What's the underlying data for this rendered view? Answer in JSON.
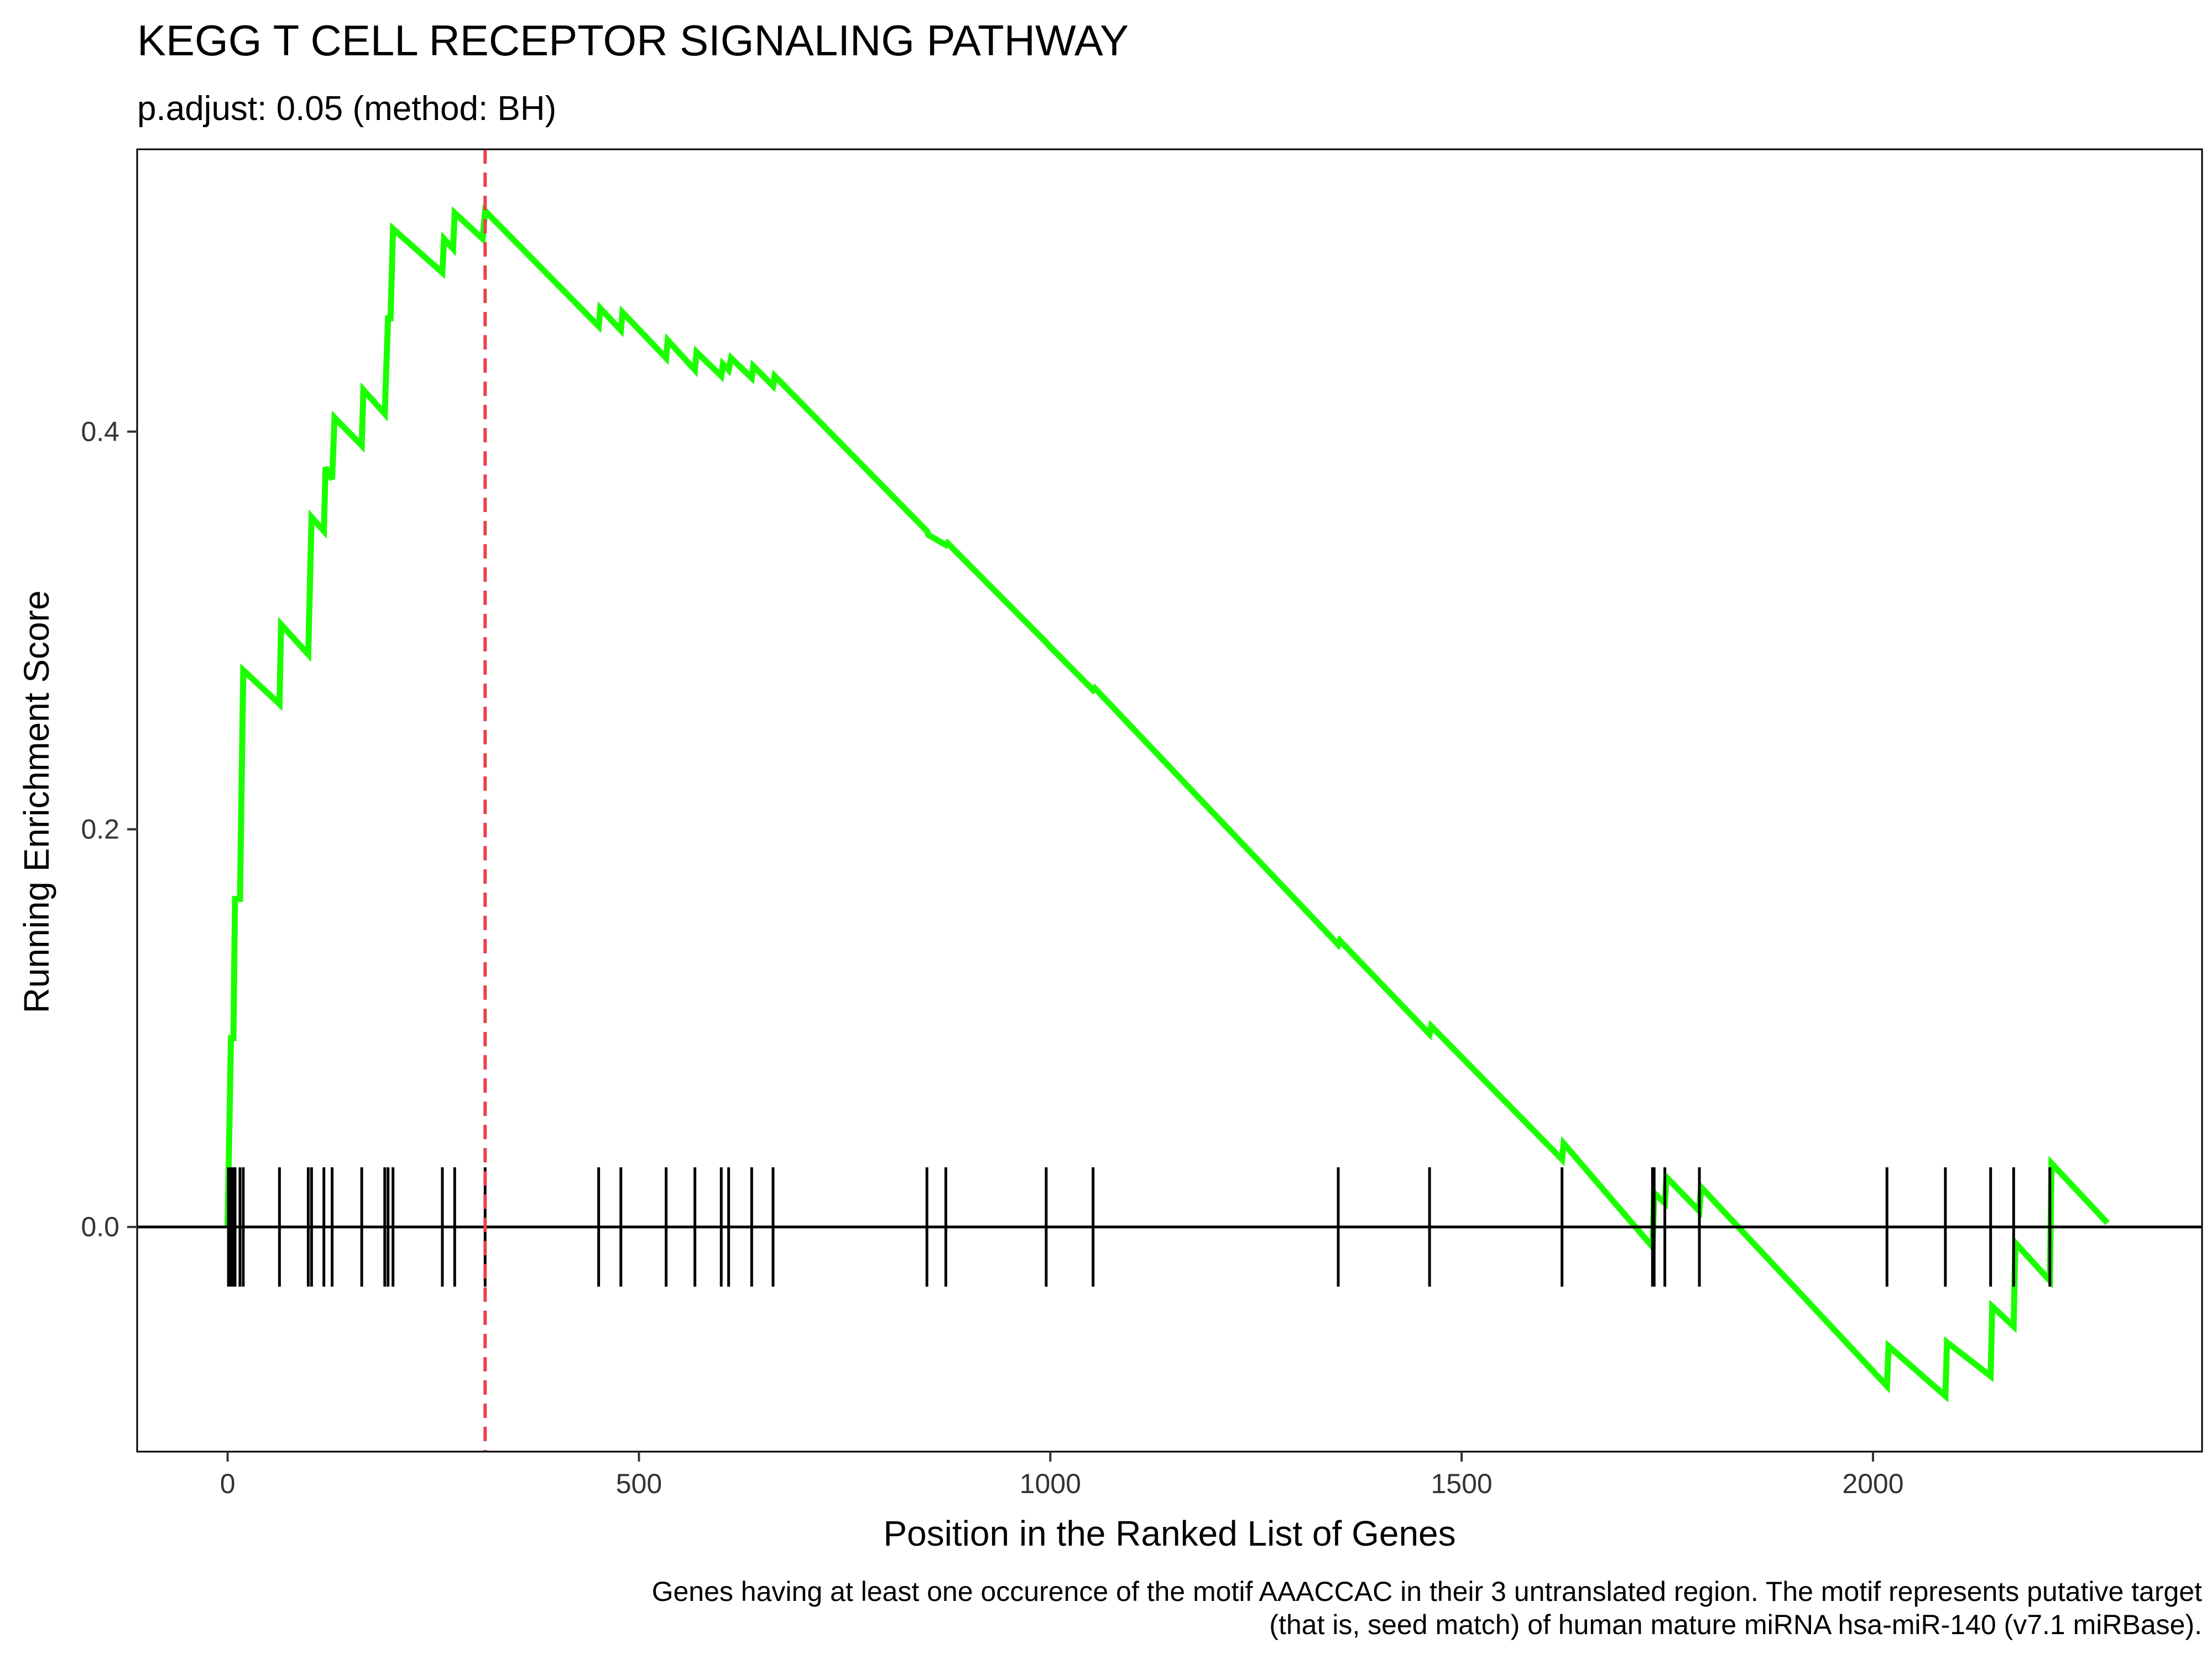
{
  "chart_data": {
    "type": "line",
    "title": "KEGG T CELL RECEPTOR SIGNALING PATHWAY",
    "subtitle": "p.adjust: 0.05 (method: BH)",
    "xlabel": "Position in the Ranked List of Genes",
    "ylabel": "Running Enrichment Score",
    "caption": [
      "Genes having at least one occurence of the motif AAACCAC in their 3 untranslated region. The motif represents putative target",
      "(that is, seed match) of human mature miRNA hsa-miR-140 (v7.1 miRBase)."
    ],
    "xlim": [
      -110,
      2400
    ],
    "ylim": [
      -0.113,
      0.542
    ],
    "x_ticks": [
      0,
      500,
      1000,
      1500,
      2000
    ],
    "y_ticks": [
      0.0,
      0.2,
      0.4
    ],
    "y_tick_labels": [
      "0.0",
      "0.2",
      "0.4"
    ],
    "grid": false,
    "line_color": "#1CFF00",
    "peak_line_color": "#E8434F",
    "peak_position": 313,
    "series": [
      {
        "values": [
          [
            0,
            0.0
          ],
          [
            4,
            0.095
          ],
          [
            7,
            0.095
          ],
          [
            9,
            0.165
          ],
          [
            15,
            0.165
          ],
          [
            17,
            0.222
          ],
          [
            19,
            0.28
          ],
          [
            63,
            0.263
          ],
          [
            65,
            0.303
          ],
          [
            98,
            0.288
          ],
          [
            100,
            0.323
          ],
          [
            102,
            0.357
          ],
          [
            117,
            0.35
          ],
          [
            119,
            0.382
          ],
          [
            127,
            0.376
          ],
          [
            130,
            0.407
          ],
          [
            163,
            0.393
          ],
          [
            165,
            0.421
          ],
          [
            191,
            0.409
          ],
          [
            193,
            0.434
          ],
          [
            195,
            0.457
          ],
          [
            198,
            0.457
          ],
          [
            201,
            0.502
          ],
          [
            261,
            0.48
          ],
          [
            263,
            0.497
          ],
          [
            274,
            0.492
          ],
          [
            276,
            0.51
          ],
          [
            310,
            0.497
          ],
          [
            313,
            0.511
          ],
          [
            451,
            0.453
          ],
          [
            453,
            0.462
          ],
          [
            478,
            0.451
          ],
          [
            480,
            0.46
          ],
          [
            533,
            0.437
          ],
          [
            535,
            0.446
          ],
          [
            568,
            0.431
          ],
          [
            570,
            0.44
          ],
          [
            600,
            0.428
          ],
          [
            602,
            0.434
          ],
          [
            609,
            0.431
          ],
          [
            612,
            0.437
          ],
          [
            637,
            0.427
          ],
          [
            639,
            0.433
          ],
          [
            663,
            0.423
          ],
          [
            665,
            0.428
          ],
          [
            850,
            0.35
          ],
          [
            852,
            0.348
          ],
          [
            873,
            0.343
          ],
          [
            875,
            0.344
          ],
          [
            995,
            0.294
          ],
          [
            997,
            0.293
          ],
          [
            1052,
            0.27
          ],
          [
            1054,
            0.271
          ],
          [
            1350,
            0.142
          ],
          [
            1352,
            0.144
          ],
          [
            1461,
            0.097
          ],
          [
            1463,
            0.101
          ],
          [
            1622,
            0.034
          ],
          [
            1624,
            0.042
          ],
          [
            1732,
            -0.01
          ],
          [
            1734,
            0.017
          ],
          [
            1747,
            0.012
          ],
          [
            1749,
            0.025
          ],
          [
            1789,
            0.008
          ],
          [
            1791,
            0.02
          ],
          [
            2017,
            -0.08
          ],
          [
            2019,
            -0.06
          ],
          [
            2088,
            -0.085
          ],
          [
            2090,
            -0.058
          ],
          [
            2143,
            -0.075
          ],
          [
            2145,
            -0.04
          ],
          [
            2171,
            -0.05
          ],
          [
            2173,
            -0.008
          ],
          [
            2215,
            -0.027
          ],
          [
            2217,
            0.032
          ],
          [
            2285,
            0.002
          ]
        ]
      }
    ],
    "gene_hits": [
      1,
      4,
      7,
      9,
      15,
      19,
      63,
      98,
      102,
      117,
      127,
      163,
      191,
      195,
      201,
      261,
      276,
      313,
      451,
      478,
      533,
      568,
      600,
      609,
      637,
      663,
      850,
      873,
      995,
      1052,
      1350,
      1461,
      1622,
      1732,
      1734,
      1747,
      1789,
      2017,
      2088,
      2143,
      2171,
      2215
    ]
  }
}
